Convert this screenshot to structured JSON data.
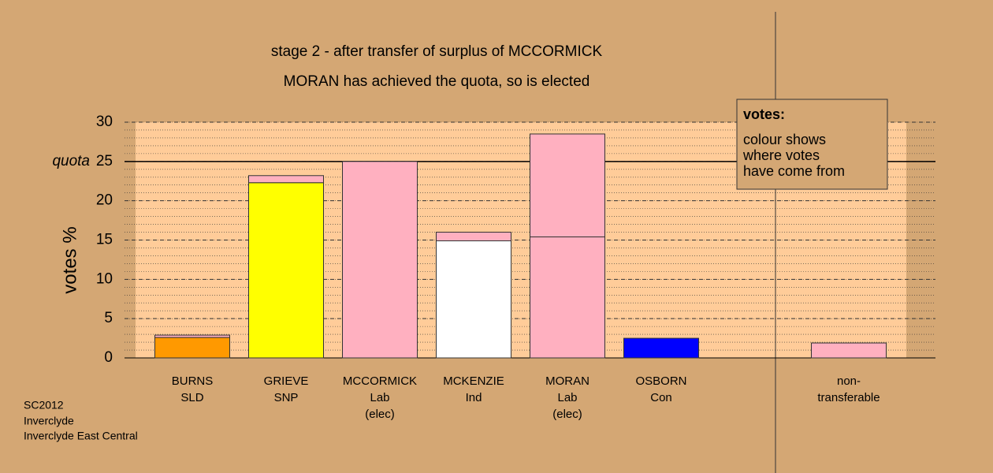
{
  "chart_data": {
    "type": "stacked-bar",
    "title": "stage 2 - after transfer of surplus of MCCORMICK",
    "subtitle": "MORAN has achieved the quota, so is elected",
    "y_label": "votes %",
    "categories": [
      [
        "BURNS",
        "SLD"
      ],
      [
        "GRIEVE",
        "SNP"
      ],
      [
        "MCCORMICK",
        "Lab",
        "(elec)"
      ],
      [
        "MCKENZIE",
        "Ind"
      ],
      [
        "MORAN",
        "Lab",
        "(elec)"
      ],
      [
        "OSBORN",
        "Con"
      ],
      null,
      [
        "non-",
        "transferable"
      ]
    ],
    "series": [
      {
        "colors": [
          "#ff9900",
          "#ffff00",
          "#ffb0c0",
          "#ffffff",
          "#ffb0c0",
          "#0000ff",
          null,
          null
        ],
        "values": [
          2.6,
          22.3,
          25,
          14.9,
          15.4,
          2.5,
          null,
          null
        ]
      },
      {
        "color": "#ffb0c0",
        "values": [
          0.3,
          0.9,
          null,
          1.1,
          13.1,
          null,
          null,
          1.9
        ]
      }
    ],
    "ylim": [
      0,
      30
    ],
    "yticks": [
      0,
      5,
      10,
      15,
      20,
      25,
      30
    ],
    "minor_grid": 1,
    "quota": 25,
    "quota_label": "quota",
    "legend": {
      "title": "votes:",
      "lines": [
        "colour shows",
        "where votes",
        "have come from"
      ]
    },
    "footer": [
      "SC2012",
      "Inverclyde",
      "Inverclyde East Central"
    ]
  }
}
